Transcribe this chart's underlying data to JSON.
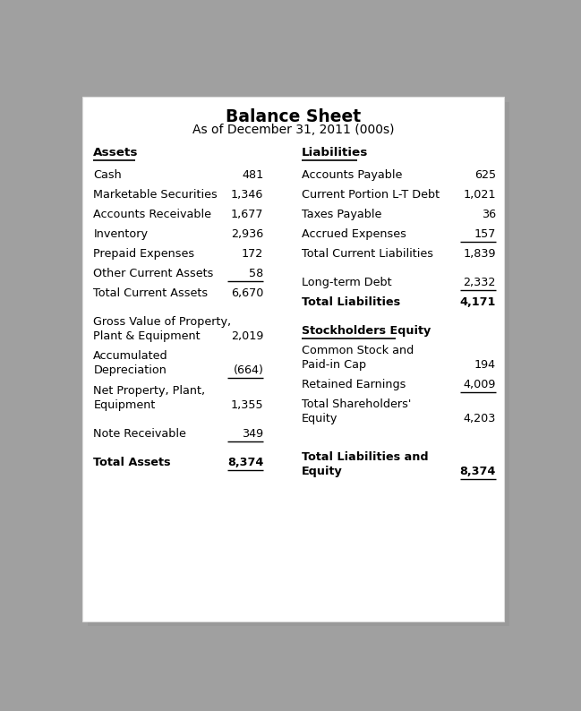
{
  "title": "Balance Sheet",
  "subtitle": "As of December 31, 2011 (000s)",
  "left_section": {
    "header": "Assets",
    "rows": [
      {
        "label": "Cash",
        "value": "481",
        "underline": false,
        "bold": false,
        "multiline": false
      },
      {
        "label": "Marketable Securities",
        "value": "1,346",
        "underline": false,
        "bold": false,
        "multiline": false
      },
      {
        "label": "Accounts Receivable",
        "value": "1,677",
        "underline": false,
        "bold": false,
        "multiline": false
      },
      {
        "label": "Inventory",
        "value": "2,936",
        "underline": false,
        "bold": false,
        "multiline": false
      },
      {
        "label": "Prepaid Expenses",
        "value": "172",
        "underline": false,
        "bold": false,
        "multiline": false
      },
      {
        "label": "Other Current Assets",
        "value": "58",
        "underline": true,
        "bold": false,
        "multiline": false
      },
      {
        "label": "Total Current Assets",
        "value": "6,670",
        "underline": false,
        "bold": false,
        "multiline": false
      },
      {
        "label": "",
        "value": "",
        "underline": false,
        "bold": false,
        "multiline": false
      },
      {
        "label": "Gross Value of Property,|Plant & Equipment",
        "value": "2,019",
        "underline": false,
        "bold": false,
        "multiline": true
      },
      {
        "label": "Accumulated|Depreciation",
        "value": "(664)",
        "underline": true,
        "bold": false,
        "multiline": true
      },
      {
        "label": "Net Property, Plant,|Equipment",
        "value": "1,355",
        "underline": false,
        "bold": false,
        "multiline": true
      },
      {
        "label": "",
        "value": "",
        "underline": false,
        "bold": false,
        "multiline": false
      },
      {
        "label": "Note Receivable",
        "value": "349",
        "underline": true,
        "bold": false,
        "multiline": false
      },
      {
        "label": "",
        "value": "",
        "underline": false,
        "bold": false,
        "multiline": false
      },
      {
        "label": "Total Assets",
        "value": "8,374",
        "underline": true,
        "bold": true,
        "multiline": false
      }
    ]
  },
  "right_section": {
    "header": "Liabilities",
    "rows": [
      {
        "label": "Accounts Payable",
        "value": "625",
        "underline": false,
        "bold": false,
        "multiline": false
      },
      {
        "label": "Current Portion L-T Debt",
        "value": "1,021",
        "underline": false,
        "bold": false,
        "multiline": false
      },
      {
        "label": "Taxes Payable",
        "value": "36",
        "underline": false,
        "bold": false,
        "multiline": false
      },
      {
        "label": "Accrued Expenses",
        "value": "157",
        "underline": true,
        "bold": false,
        "multiline": false
      },
      {
        "label": "Total Current Liabilities",
        "value": "1,839",
        "underline": false,
        "bold": false,
        "multiline": false
      },
      {
        "label": "",
        "value": "",
        "underline": false,
        "bold": false,
        "multiline": false
      },
      {
        "label": "Long-term Debt",
        "value": "2,332",
        "underline": true,
        "bold": false,
        "multiline": false
      },
      {
        "label": "Total Liabilities",
        "value": "4,171",
        "underline": false,
        "bold": true,
        "multiline": false
      },
      {
        "label": "",
        "value": "",
        "underline": false,
        "bold": false,
        "multiline": false
      },
      {
        "label": "Stockholders Equity",
        "value": "",
        "underline": true,
        "bold": true,
        "multiline": false
      },
      {
        "label": "Common Stock and|Paid-in Cap",
        "value": "194",
        "underline": false,
        "bold": false,
        "multiline": true
      },
      {
        "label": "Retained Earnings",
        "value": "4,009",
        "underline": true,
        "bold": false,
        "multiline": false
      },
      {
        "label": "Total Shareholders'|Equity",
        "value": "4,203",
        "underline": false,
        "bold": false,
        "multiline": true
      },
      {
        "label": "",
        "value": "",
        "underline": false,
        "bold": false,
        "multiline": false
      },
      {
        "label": "",
        "value": "",
        "underline": false,
        "bold": false,
        "multiline": false
      },
      {
        "label": "Total Liabilities and|Equity",
        "value": "8,374",
        "underline": true,
        "bold": true,
        "multiline": true
      }
    ]
  }
}
